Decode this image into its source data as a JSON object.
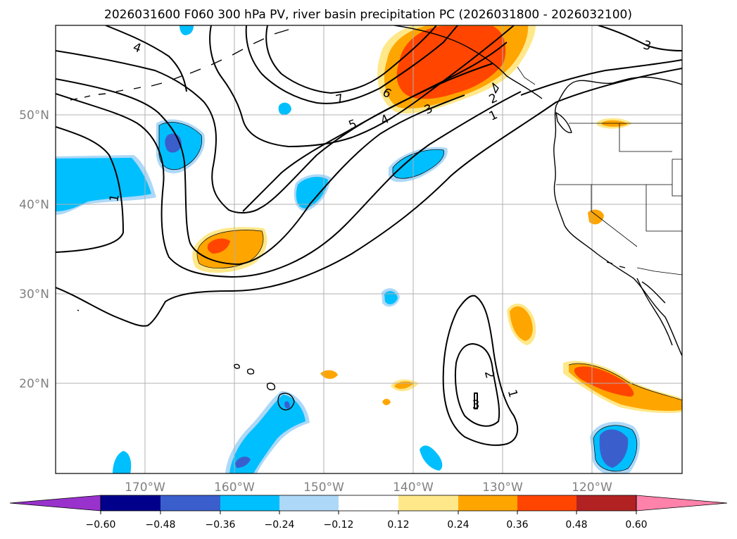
{
  "title": "2026031600 F060 300 hPa PV, river basin precipitation PC (2026031800 - 2026032100)",
  "colors": {
    "neg_060": "#9932cc",
    "neg_048": "#00008b",
    "neg_036": "#3a5fcd",
    "neg_024": "#00bfff",
    "neg_012": "#add8f7",
    "neutral": "#ffffff",
    "pos_012": "#ffe88a",
    "pos_024": "#ffa500",
    "pos_036": "#ff4500",
    "pos_048": "#b22222",
    "pos_060": "#ff82ab"
  },
  "map": {
    "lon_ticks": [
      {
        "lon": -170,
        "label": "170°W"
      },
      {
        "lon": -160,
        "label": "160°W"
      },
      {
        "lon": -150,
        "label": "150°W"
      },
      {
        "lon": -140,
        "label": "140°W"
      },
      {
        "lon": -130,
        "label": "130°W"
      },
      {
        "lon": -120,
        "label": "120°W"
      }
    ],
    "lat_ticks": [
      {
        "lat": 50,
        "label": "50°N"
      },
      {
        "lat": 40,
        "label": "40°N"
      },
      {
        "lat": 30,
        "label": "30°N"
      },
      {
        "lat": 20,
        "label": "20°N"
      }
    ],
    "pv_contour_labels": [
      "1",
      "2",
      "3",
      "4",
      "5",
      "6",
      "7"
    ]
  },
  "colorbar": {
    "tick_labels": [
      "−0.60",
      "−0.48",
      "−0.36",
      "−0.24",
      "−0.12",
      "0.12",
      "0.24",
      "0.36",
      "0.48",
      "0.60"
    ]
  }
}
